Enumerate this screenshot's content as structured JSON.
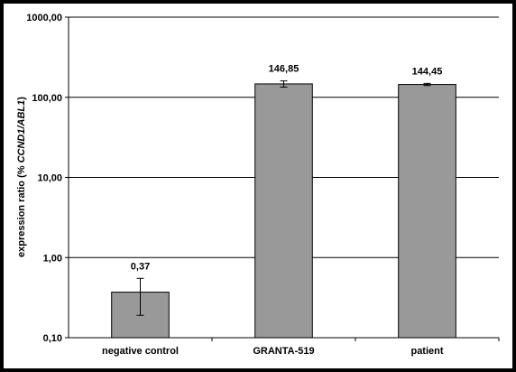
{
  "chart_data": {
    "type": "bar",
    "scale": "log",
    "categories": [
      "negative control",
      "GRANTA-519",
      "patient"
    ],
    "values": [
      0.37,
      146.85,
      144.45
    ],
    "value_labels": [
      "0,37",
      "146,85",
      "144,45"
    ],
    "error_bars": [
      {
        "low": 0.19,
        "high": 0.55
      },
      {
        "low": 134,
        "high": 160
      },
      {
        "low": 140,
        "high": 149
      }
    ],
    "ylim": [
      0.1,
      1000
    ],
    "yticks": [
      0.1,
      1,
      10,
      100,
      1000
    ],
    "ytick_labels": [
      "0,10",
      "1,00",
      "10,00",
      "100,00",
      "1000,00"
    ],
    "ylabel_plain": "expression ratio (% ",
    "ylabel_italic": "CCND1/ABL1",
    "ylabel_close": ")",
    "grid": true,
    "bar_color": "#999999",
    "colors": {
      "frame": "#000000",
      "background": "#ffffff"
    }
  }
}
